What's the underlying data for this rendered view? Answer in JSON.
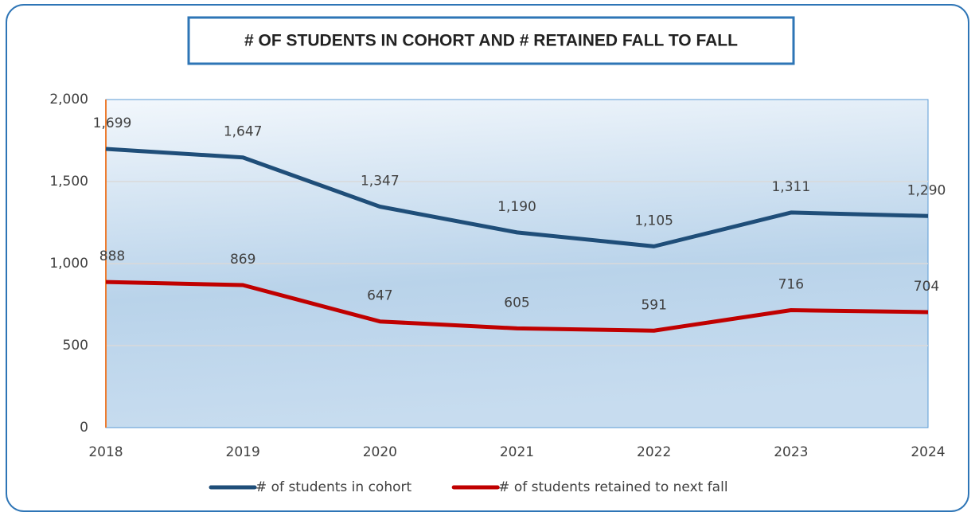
{
  "chart_data": {
    "type": "line",
    "title": "# OF STUDENTS IN COHORT AND # RETAINED FALL TO FALL",
    "categories": [
      "2018",
      "2019",
      "2020",
      "2021",
      "2022",
      "2023",
      "2024"
    ],
    "series": [
      {
        "name": "# of students in cohort",
        "color": "#1f4e79",
        "values": [
          1699,
          1647,
          1347,
          1190,
          1105,
          1311,
          1290
        ],
        "value_labels": [
          "1,699",
          "1,647",
          "1,347",
          "1,190",
          "1,105",
          "1,311",
          "1,290"
        ]
      },
      {
        "name": "# of students retained to next fall",
        "color": "#c00000",
        "values": [
          888,
          869,
          647,
          605,
          591,
          716,
          704
        ]
      }
    ],
    "ylim": [
      0,
      2000
    ],
    "yticks": [
      0,
      500,
      {
        "value": 1000,
        "label": "1,000"
      },
      {
        "value": 1500,
        "label": "1,500"
      },
      {
        "value": 2000,
        "label": "2,000"
      }
    ],
    "grid": true,
    "legend": "bottom"
  }
}
